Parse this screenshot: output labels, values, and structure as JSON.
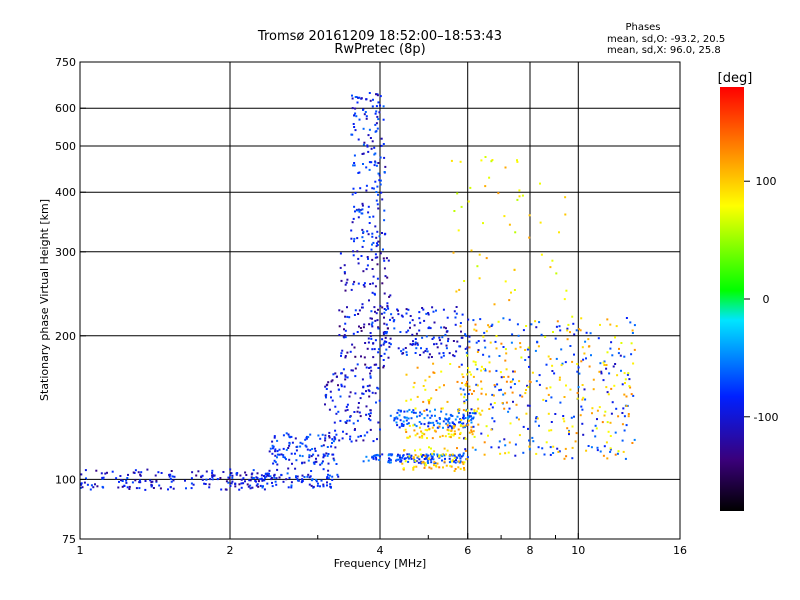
{
  "chart_data": {
    "type": "scatter",
    "title": "Tromsø 20161209 18:52:00–18:53:43",
    "subtitle": "RwPretec (8p)",
    "xlabel": "Frequency [MHz]",
    "ylabel": "Stationary phase Virtual Height [km]",
    "x_scale": "log",
    "y_scale": "log",
    "xlim": [
      1,
      16
    ],
    "ylim": [
      75,
      750
    ],
    "x_ticks": [
      1,
      2,
      4,
      6,
      8,
      10,
      16
    ],
    "x_tick_labels": [
      "1",
      "2",
      "4",
      "6",
      "8",
      "10",
      "16"
    ],
    "x_minor_ticks": [
      3,
      5,
      7,
      9
    ],
    "y_ticks": [
      75,
      100,
      200,
      300,
      400,
      500,
      600,
      750
    ],
    "y_tick_labels": [
      "75",
      "100",
      "200",
      "300",
      "400",
      "500",
      "600",
      "750"
    ],
    "grid": true,
    "legend": {
      "title": "Phases",
      "lines": [
        "mean, sd,O: -93.2, 20.5",
        "mean, sd,X:  96.0, 25.8"
      ],
      "placement": "top-right"
    },
    "colorbar": {
      "label": "[deg]",
      "range": [
        -180,
        180
      ],
      "ticks": [
        100,
        0,
        -100
      ],
      "tick_labels": [
        "100",
        "0",
        "-100"
      ],
      "colors": [
        "#000000",
        "#3a007a",
        "#0020ff",
        "#00e5ff",
        "#00ff00",
        "#ffff00",
        "#ff8000",
        "#ff0000"
      ]
    },
    "series": [
      {
        "x_range": [
          1.0,
          2.4
        ],
        "y_range": [
          95,
          105
        ],
        "phase": -110,
        "count": 170
      },
      {
        "x_range": [
          2.1,
          3.3
        ],
        "y_range": [
          96,
          103
        ],
        "phase": -100,
        "count": 90
      },
      {
        "x_range": [
          2.4,
          3.3
        ],
        "y_range": [
          104,
          125
        ],
        "phase": -95,
        "count": 120
      },
      {
        "x_range": [
          3.1,
          4.0
        ],
        "y_range": [
          120,
          170
        ],
        "phase": -110,
        "count": 120
      },
      {
        "x_range": [
          3.3,
          4.2
        ],
        "y_range": [
          170,
          300
        ],
        "phase": -115,
        "count": 140
      },
      {
        "x_range": [
          3.5,
          4.1
        ],
        "y_range": [
          300,
          650
        ],
        "phase": -100,
        "count": 170
      },
      {
        "x_range": [
          3.7,
          5.9
        ],
        "y_range": [
          108,
          113
        ],
        "phase": -85,
        "count": 130
      },
      {
        "x_range": [
          3.8,
          6.0
        ],
        "y_range": [
          180,
          230
        ],
        "phase": -105,
        "count": 150
      },
      {
        "x_range": [
          4.2,
          6.2
        ],
        "y_range": [
          128,
          140
        ],
        "phase": -80,
        "count": 120
      },
      {
        "x_range": [
          4.4,
          6.0
        ],
        "y_range": [
          104,
          117
        ],
        "phase": 100,
        "count": 70
      },
      {
        "x_range": [
          4.5,
          6.2
        ],
        "y_range": [
          122,
          130
        ],
        "phase": 100,
        "count": 60
      },
      {
        "x_range": [
          4.5,
          6.4
        ],
        "y_range": [
          138,
          180
        ],
        "phase": 100,
        "count": 50
      },
      {
        "x_range": [
          5.8,
          13.0
        ],
        "y_range": [
          110,
          220
        ],
        "phase": -90,
        "count": 220
      },
      {
        "x_range": [
          5.8,
          13.0
        ],
        "y_range": [
          110,
          220
        ],
        "phase": 100,
        "count": 220
      },
      {
        "x_range": [
          5.5,
          9.5
        ],
        "y_range": [
          230,
          480
        ],
        "phase": 90,
        "count": 55
      }
    ]
  }
}
